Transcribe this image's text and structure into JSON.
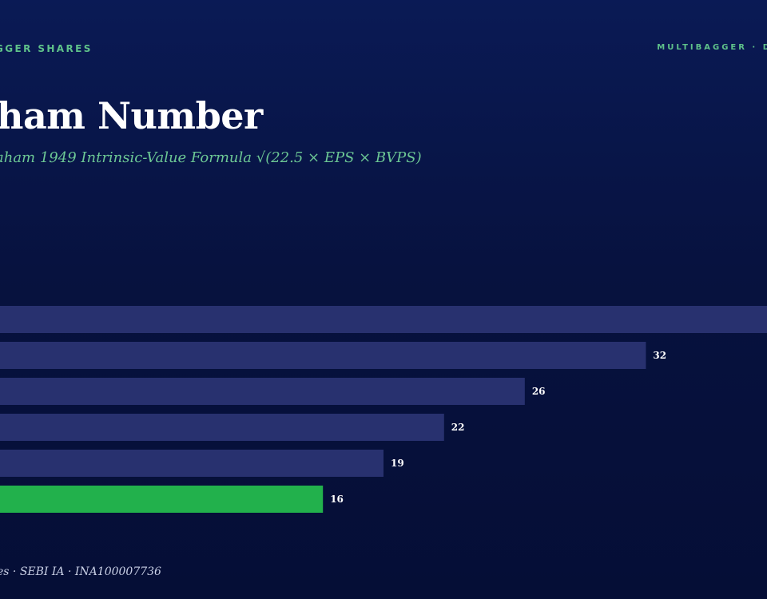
{
  "brand": {
    "left": "GGER SHARES",
    "right": "MULTIBAGGER · D"
  },
  "title": "ham Number",
  "subtitle": "aham 1949 Intrinsic-Value Formula √(22.5 × EPS × BVPS)",
  "footer": "es · SEBI IA · INA100007736",
  "colors": {
    "bar": "#28316f",
    "highlight": "#22b14c",
    "label": "#ffffff"
  },
  "chart_data": {
    "type": "bar",
    "orientation": "horizontal",
    "title": "ham Number",
    "subtitle": "aham 1949 Intrinsic-Value Formula √(22.5 × EPS × BVPS)",
    "categories": [
      "",
      "",
      "",
      "",
      "",
      ""
    ],
    "values": [
      38,
      32,
      26,
      22,
      19,
      16
    ],
    "value_labels": [
      "",
      "32",
      "26",
      "22",
      "19",
      "16"
    ],
    "highlight_index": 5,
    "xlim": [
      0,
      38
    ],
    "grid": false,
    "legend": "none"
  }
}
